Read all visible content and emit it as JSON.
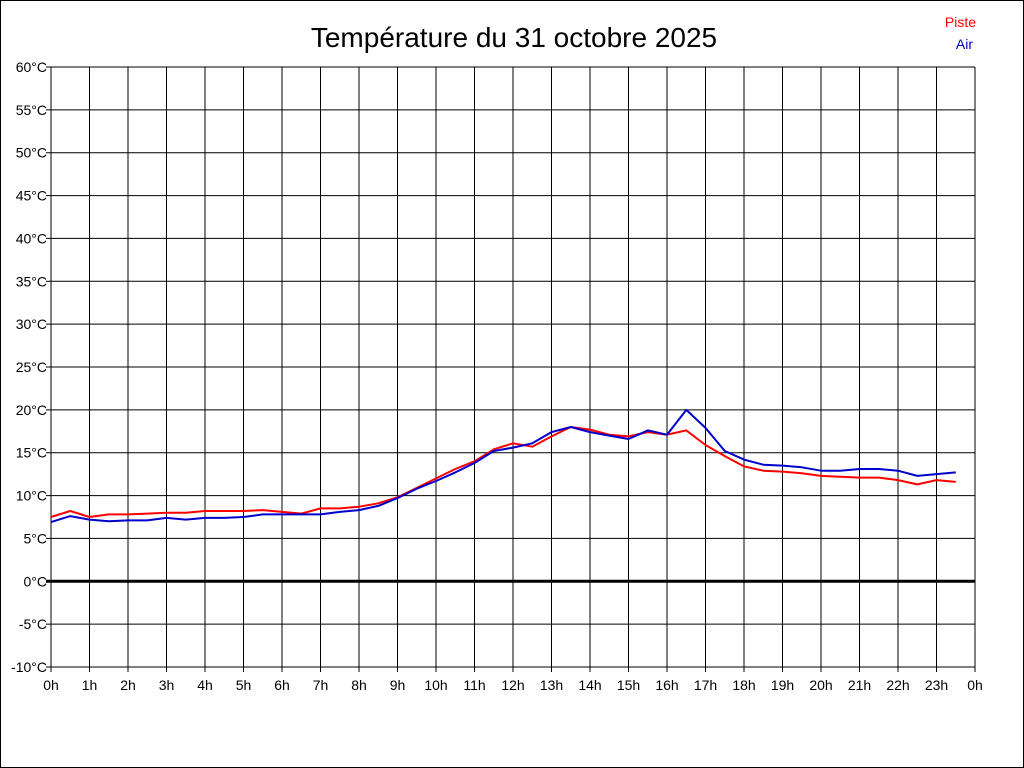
{
  "chart_data": {
    "type": "line",
    "title": "Température du 31 octobre 2025",
    "xlabel": "",
    "ylabel": "",
    "x_ticks": [
      "0h",
      "1h",
      "2h",
      "3h",
      "4h",
      "5h",
      "6h",
      "7h",
      "8h",
      "9h",
      "10h",
      "11h",
      "12h",
      "13h",
      "14h",
      "15h",
      "16h",
      "17h",
      "18h",
      "19h",
      "20h",
      "21h",
      "22h",
      "23h",
      "0h"
    ],
    "y_ticks": [
      "60°C",
      "55°C",
      "50°C",
      "45°C",
      "40°C",
      "35°C",
      "30°C",
      "25°C",
      "20°C",
      "15°C",
      "10°C",
      "5°C",
      "0°C",
      "-5°C",
      "-10°C"
    ],
    "ylim": [
      -10,
      60
    ],
    "xlim": [
      0,
      24
    ],
    "grid": true,
    "legend_position": "top-right",
    "series": [
      {
        "name": "Piste",
        "color": "#ff0000",
        "x": [
          0,
          0.5,
          1,
          1.5,
          2,
          2.5,
          3,
          3.5,
          4,
          4.5,
          5,
          5.5,
          6,
          6.5,
          7,
          7.5,
          8,
          8.5,
          9,
          9.5,
          10,
          10.5,
          11,
          11.5,
          12,
          12.5,
          13,
          13.5,
          14,
          14.5,
          15,
          15.5,
          16,
          16.5,
          17,
          17.5,
          18,
          18.5,
          19,
          19.5,
          20,
          20.5,
          21,
          21.5,
          22,
          22.5,
          23,
          23.5
        ],
        "values": [
          7.5,
          8.2,
          7.5,
          7.8,
          7.8,
          7.9,
          8.0,
          8.0,
          8.2,
          8.2,
          8.2,
          8.3,
          8.1,
          7.9,
          8.5,
          8.5,
          8.7,
          9.1,
          9.8,
          10.9,
          12.0,
          13.1,
          14.0,
          15.4,
          16.1,
          15.7,
          16.9,
          18.0,
          17.7,
          17.1,
          16.9,
          17.4,
          17.1,
          17.6,
          15.9,
          14.6,
          13.4,
          12.9,
          12.8,
          12.6,
          12.3,
          12.2,
          12.1,
          12.1,
          11.8,
          11.3,
          11.8,
          11.6
        ]
      },
      {
        "name": "Air",
        "color": "#0000cc",
        "x": [
          0,
          0.5,
          1,
          1.5,
          2,
          2.5,
          3,
          3.5,
          4,
          4.5,
          5,
          5.5,
          6,
          6.5,
          7,
          7.5,
          8,
          8.5,
          9,
          9.5,
          10,
          10.5,
          11,
          11.5,
          12,
          12.5,
          13,
          13.5,
          14,
          14.5,
          15,
          15.5,
          16,
          16.5,
          17,
          17.5,
          18,
          18.5,
          19,
          19.5,
          20,
          20.5,
          21,
          21.5,
          22,
          22.5,
          23,
          23.5
        ],
        "values": [
          6.9,
          7.6,
          7.2,
          7.0,
          7.1,
          7.1,
          7.4,
          7.2,
          7.4,
          7.4,
          7.5,
          7.8,
          7.8,
          7.8,
          7.8,
          8.1,
          8.3,
          8.8,
          9.7,
          10.8,
          11.7,
          12.7,
          13.8,
          15.2,
          15.6,
          16.1,
          17.4,
          18.0,
          17.4,
          17.0,
          16.6,
          17.6,
          17.1,
          20.0,
          17.9,
          15.2,
          14.2,
          13.6,
          13.5,
          13.3,
          12.9,
          12.9,
          13.1,
          13.1,
          12.9,
          12.3,
          12.5,
          12.7
        ]
      }
    ]
  }
}
